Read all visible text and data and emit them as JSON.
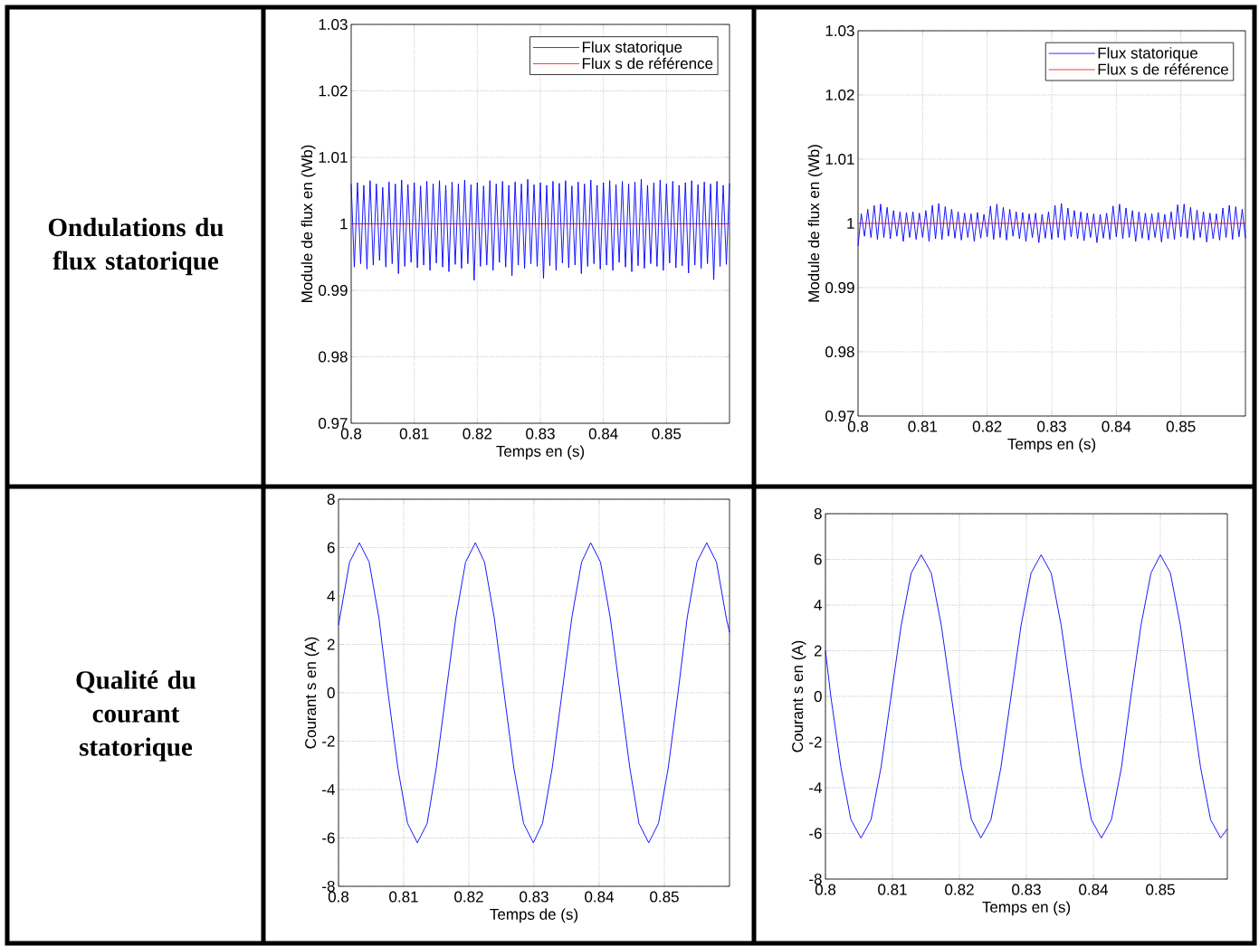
{
  "chart_data": [
    {
      "type": "other",
      "title": "Ondulations du flux statorique"
    },
    {
      "type": "line",
      "xlabel": "Temps en (s)",
      "ylabel": "Module de flux en (Wb)",
      "xlim": [
        0.8,
        0.86
      ],
      "ylim": [
        0.97,
        1.03
      ],
      "xticks": [
        0.8,
        0.81,
        0.82,
        0.83,
        0.84,
        0.85
      ],
      "yticks": [
        0.97,
        0.98,
        0.99,
        1,
        1.01,
        1.02,
        1.03
      ],
      "grid": true,
      "legend": "top right",
      "series": [
        {
          "name": "Flux statorique",
          "color": "#0000ff",
          "x": [
            0.8,
            0.8005,
            0.801,
            0.8015,
            0.802,
            0.8025,
            0.803,
            0.8035,
            0.804,
            0.8045,
            0.805,
            0.8055,
            0.806,
            0.8065,
            0.807,
            0.8075,
            0.808,
            0.8085,
            0.809,
            0.8095,
            0.81,
            0.8105,
            0.811,
            0.8115,
            0.812,
            0.8125,
            0.813,
            0.8135,
            0.814,
            0.8145,
            0.815,
            0.8155,
            0.816,
            0.8165,
            0.817,
            0.8175,
            0.818,
            0.8185,
            0.819,
            0.8195,
            0.82,
            0.8205,
            0.821,
            0.8215,
            0.822,
            0.8225,
            0.823,
            0.8235,
            0.824,
            0.8245,
            0.825,
            0.8255,
            0.826,
            0.8265,
            0.827,
            0.8275,
            0.828,
            0.8285,
            0.829,
            0.8295,
            0.83,
            0.8305,
            0.831,
            0.8315,
            0.832,
            0.8325,
            0.833,
            0.8335,
            0.834,
            0.8345,
            0.835,
            0.8355,
            0.836,
            0.8365,
            0.837,
            0.8375,
            0.838,
            0.8385,
            0.839,
            0.8395,
            0.84,
            0.8405,
            0.841,
            0.8415,
            0.842,
            0.8425,
            0.843,
            0.8435,
            0.844,
            0.8445,
            0.845,
            0.8455,
            0.846,
            0.8465,
            0.847,
            0.8475,
            0.848,
            0.8485,
            0.849,
            0.8495,
            0.85,
            0.8505,
            0.851,
            0.8515,
            0.852,
            0.8525,
            0.853,
            0.8535,
            0.854,
            0.8545,
            0.855,
            0.8555,
            0.856,
            0.8565,
            0.857,
            0.8575,
            0.858,
            0.8585,
            0.859,
            0.8595,
            0.86
          ],
          "values": [
            1.006,
            0.9935,
            1.0062,
            0.994,
            1.0058,
            0.9932,
            1.0065,
            0.9938,
            1.006,
            0.9945,
            1.0055,
            0.9935,
            1.0063,
            0.994,
            1.006,
            0.9925,
            1.0066,
            0.9936,
            1.0059,
            0.9942,
            1.0062,
            0.9934,
            1.0057,
            0.9938,
            1.0064,
            0.993,
            1.006,
            0.9941,
            1.0065,
            0.9935,
            1.0058,
            0.9928,
            1.0063,
            0.9939,
            1.006,
            0.9933,
            1.0066,
            0.994,
            1.0059,
            0.9915,
            1.0062,
            0.9936,
            1.0057,
            0.9938,
            1.0065,
            0.993,
            1.006,
            0.9942,
            1.0064,
            0.9935,
            1.0058,
            0.9922,
            1.0063,
            0.9938,
            1.006,
            0.9933,
            1.0067,
            0.994,
            1.0059,
            0.9936,
            1.0062,
            0.9918,
            1.0058,
            0.9937,
            1.0064,
            0.993,
            1.0061,
            0.9941,
            1.0065,
            0.9934,
            1.0057,
            0.9938,
            1.0063,
            0.9925,
            1.006,
            0.9936,
            1.0066,
            0.994,
            1.0058,
            0.9932,
            1.0062,
            0.9938,
            1.0065,
            0.993,
            1.0059,
            0.9942,
            1.0064,
            0.9935,
            1.006,
            0.9928,
            1.0063,
            0.9937,
            1.0067,
            0.9933,
            1.0058,
            0.994,
            1.0062,
            0.9936,
            1.0066,
            0.993,
            1.006,
            0.9941,
            1.0064,
            0.9934,
            1.0058,
            0.9937,
            1.0062,
            0.9926,
            1.0065,
            0.9938,
            1.0059,
            0.9933,
            1.0063,
            0.994,
            1.006,
            0.9916,
            1.0064,
            0.9936,
            1.0058,
            0.9939,
            1.0061
          ]
        },
        {
          "name": "Flux s de référence",
          "color": "#ff0000",
          "x": [
            0.8,
            0.86
          ],
          "values": [
            1,
            1
          ]
        }
      ]
    },
    {
      "type": "line",
      "xlabel": "Temps en (s)",
      "ylabel": "Module de flux en (Wb)",
      "xlim": [
        0.8,
        0.86
      ],
      "ylim": [
        0.97,
        1.03
      ],
      "xticks": [
        0.8,
        0.81,
        0.82,
        0.83,
        0.84,
        0.85
      ],
      "yticks": [
        0.97,
        0.98,
        0.99,
        1,
        1.01,
        1.02,
        1.03
      ],
      "grid": true,
      "legend": "top right",
      "series": [
        {
          "name": "Flux statorique",
          "color": "#0000ff",
          "x": [
            0.8,
            0.8005,
            0.801,
            0.8015,
            0.802,
            0.8025,
            0.803,
            0.8035,
            0.804,
            0.8045,
            0.805,
            0.8055,
            0.806,
            0.8065,
            0.807,
            0.8075,
            0.808,
            0.8085,
            0.809,
            0.8095,
            0.81,
            0.8105,
            0.811,
            0.8115,
            0.812,
            0.8125,
            0.813,
            0.8135,
            0.814,
            0.8145,
            0.815,
            0.8155,
            0.816,
            0.8165,
            0.817,
            0.8175,
            0.818,
            0.8185,
            0.819,
            0.8195,
            0.82,
            0.8205,
            0.821,
            0.8215,
            0.822,
            0.8225,
            0.823,
            0.8235,
            0.824,
            0.8245,
            0.825,
            0.8255,
            0.826,
            0.8265,
            0.827,
            0.8275,
            0.828,
            0.8285,
            0.829,
            0.8295,
            0.83,
            0.8305,
            0.831,
            0.8315,
            0.832,
            0.8325,
            0.833,
            0.8335,
            0.834,
            0.8345,
            0.835,
            0.8355,
            0.836,
            0.8365,
            0.837,
            0.8375,
            0.838,
            0.8385,
            0.839,
            0.8395,
            0.84,
            0.8405,
            0.841,
            0.8415,
            0.842,
            0.8425,
            0.843,
            0.8435,
            0.844,
            0.8445,
            0.845,
            0.8455,
            0.846,
            0.8465,
            0.847,
            0.8475,
            0.848,
            0.8485,
            0.849,
            0.8495,
            0.85,
            0.8505,
            0.851,
            0.8515,
            0.852,
            0.8525,
            0.853,
            0.8535,
            0.854,
            0.8545,
            0.855,
            0.8555,
            0.856,
            0.8565,
            0.857,
            0.8575,
            0.858,
            0.8585,
            0.859,
            0.8595,
            0.86
          ],
          "values": [
            0.9965,
            1.0015,
            0.998,
            1.0022,
            0.9978,
            1.0028,
            0.9975,
            1.003,
            0.9978,
            1.0025,
            0.9976,
            1.002,
            0.998,
            1.0018,
            0.9972,
            1.0017,
            0.9978,
            1.0018,
            0.9975,
            1.0016,
            0.9978,
            1.002,
            0.9972,
            1.0028,
            0.9976,
            1.0031,
            0.9975,
            1.0026,
            0.998,
            1.0022,
            0.9977,
            1.0018,
            0.9974,
            1.0016,
            0.9978,
            1.0015,
            0.9972,
            1.0017,
            0.9977,
            1.0014,
            0.9979,
            1.0027,
            0.9975,
            1.003,
            0.9978,
            1.0025,
            0.9974,
            1.0022,
            0.998,
            1.0018,
            0.9976,
            1.0017,
            0.9972,
            1.0015,
            0.9978,
            1.0016,
            0.997,
            1.0014,
            0.9977,
            1.0018,
            0.9975,
            1.0028,
            0.9978,
            1.0031,
            0.9974,
            1.0024,
            0.9979,
            1.002,
            0.9976,
            1.0018,
            0.9973,
            1.0016,
            0.9978,
            1.0015,
            0.997,
            1.0014,
            0.9977,
            1.0016,
            0.9975,
            1.0027,
            0.9979,
            1.003,
            0.9976,
            1.0024,
            0.9978,
            1.002,
            0.9972,
            1.0018,
            0.9977,
            1.0016,
            0.9974,
            1.0015,
            0.9978,
            1.0017,
            0.9971,
            1.0014,
            0.9976,
            1.0018,
            0.9975,
            1.0029,
            0.9979,
            1.003,
            0.9977,
            1.0025,
            0.9974,
            1.0021,
            0.9978,
            1.0018,
            0.9971,
            1.0016,
            0.9976,
            1.0015,
            0.9974,
            1.0024,
            0.9978,
            1.0028,
            0.9975,
            1.0026,
            0.9979,
            1.0022,
            0.9977
          ]
        },
        {
          "name": "Flux s de référence",
          "color": "#ff0000",
          "x": [
            0.8,
            0.86
          ],
          "values": [
            1,
            1
          ]
        }
      ]
    },
    {
      "type": "other",
      "title": "Qualité du courant statorique"
    },
    {
      "type": "line",
      "xlabel": "Temps de (s)",
      "ylabel": "Courant s en (A)",
      "xlim": [
        0.8,
        0.86
      ],
      "ylim": [
        -8,
        8
      ],
      "xticks": [
        0.8,
        0.81,
        0.82,
        0.83,
        0.84,
        0.85
      ],
      "yticks": [
        -8,
        -6,
        -4,
        -2,
        0,
        2,
        4,
        6,
        8
      ],
      "grid": true,
      "series": [
        {
          "color": "#0000ff",
          "x": [
            0.8,
            0.8017,
            0.8032,
            0.8047,
            0.8062,
            0.8076,
            0.8091,
            0.8106,
            0.8121,
            0.8136,
            0.815,
            0.8165,
            0.818,
            0.8195,
            0.821,
            0.8224,
            0.8239,
            0.8254,
            0.8269,
            0.8284,
            0.8299,
            0.8313,
            0.8328,
            0.8343,
            0.8358,
            0.8373,
            0.8387,
            0.8402,
            0.8417,
            0.8432,
            0.8447,
            0.8461,
            0.8476,
            0.8491,
            0.8506,
            0.8521,
            0.8535,
            0.855,
            0.8565,
            0.858,
            0.8595,
            0.86
          ],
          "values": [
            2.8,
            5.4,
            6.2,
            5.4,
            3.1,
            0,
            -3.1,
            -5.4,
            -6.2,
            -5.4,
            -3.1,
            0,
            3.1,
            5.4,
            6.2,
            5.4,
            3.1,
            0,
            -3.1,
            -5.4,
            -6.2,
            -5.4,
            -3.1,
            0,
            3.1,
            5.4,
            6.2,
            5.4,
            3.1,
            0,
            -3.1,
            -5.4,
            -6.2,
            -5.4,
            -3.1,
            0,
            3.1,
            5.4,
            6.2,
            5.4,
            3.1,
            2.5
          ]
        }
      ]
    },
    {
      "type": "line",
      "xlabel": "Temps en (s)",
      "ylabel": "Courant s en (A)",
      "xlim": [
        0.8,
        0.86
      ],
      "ylim": [
        -8,
        8
      ],
      "xticks": [
        0.8,
        0.81,
        0.82,
        0.83,
        0.84,
        0.85
      ],
      "yticks": [
        -8,
        -6,
        -4,
        -2,
        0,
        2,
        4,
        6,
        8
      ],
      "grid": true,
      "series": [
        {
          "color": "#0000ff",
          "x": [
            0.8,
            0.8008,
            0.8023,
            0.8038,
            0.8053,
            0.8068,
            0.8083,
            0.8098,
            0.8113,
            0.8128,
            0.8143,
            0.8158,
            0.8173,
            0.8188,
            0.8203,
            0.8218,
            0.8232,
            0.8247,
            0.8262,
            0.8277,
            0.8292,
            0.8307,
            0.8322,
            0.8337,
            0.8352,
            0.8367,
            0.8382,
            0.8397,
            0.8412,
            0.8427,
            0.8442,
            0.8456,
            0.8471,
            0.8486,
            0.85,
            0.8515,
            0.853,
            0.8545,
            0.856,
            0.8575,
            0.859,
            0.86
          ],
          "values": [
            2,
            0,
            -3.1,
            -5.4,
            -6.2,
            -5.4,
            -3.1,
            0,
            3.1,
            5.4,
            6.2,
            5.4,
            3.1,
            0,
            -3.1,
            -5.4,
            -6.2,
            -5.4,
            -3.1,
            0,
            3.1,
            5.4,
            6.2,
            5.4,
            3.1,
            0,
            -3.1,
            -5.4,
            -6.2,
            -5.4,
            -3.1,
            0,
            3.1,
            5.4,
            6.2,
            5.4,
            3.1,
            0,
            -3.1,
            -5.4,
            -6.2,
            -5.8
          ]
        }
      ]
    }
  ]
}
